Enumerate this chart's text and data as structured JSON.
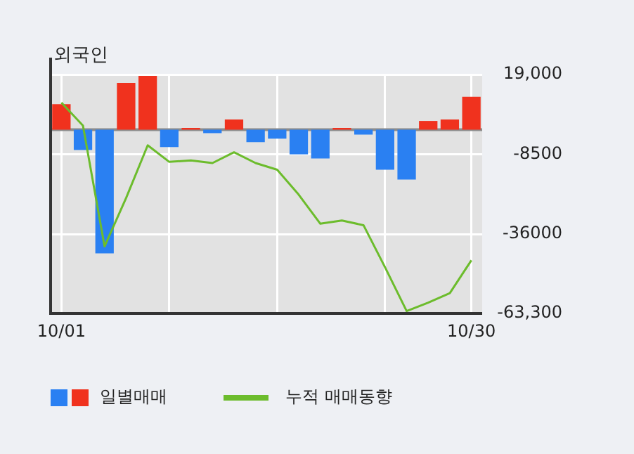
{
  "chart_data": {
    "type": "bar",
    "title": "외국인",
    "categories": [
      "10/01",
      null,
      null,
      null,
      null,
      null,
      null,
      null,
      null,
      null,
      null,
      null,
      null,
      null,
      null,
      null,
      null,
      null,
      null,
      "10/30"
    ],
    "series": [
      {
        "name": "일별매매",
        "colors": [
          "#f0321e",
          "#2a80f2",
          "#2a80f2",
          "#f0321e",
          "#f0321e",
          "#2a80f2",
          "#f0321e",
          "#2a80f2",
          "#f0321e",
          "#2a80f2",
          "#2a80f2",
          "#2a80f2",
          "#2a80f2",
          "#f0321e",
          "#2a80f2",
          "#2a80f2",
          "#2a80f2",
          "#f0321e",
          "#f0321e",
          "#f0321e"
        ],
        "values": [
          8800,
          -7000,
          -42600,
          16100,
          18500,
          -6000,
          600,
          -1200,
          3500,
          -4300,
          -3100,
          -8500,
          -9900,
          600,
          -1700,
          -13800,
          -17200,
          3000,
          3500,
          11300
        ]
      },
      {
        "name": "누적 매매동향",
        "type": "line",
        "color": "#6cbc2c",
        "values": [
          9300,
          1400,
          -40200,
          -23500,
          -5400,
          -11100,
          -10600,
          -11500,
          -7800,
          -11500,
          -13800,
          -22400,
          -32400,
          -31300,
          -32900,
          -47400,
          -62500,
          -59600,
          -56300,
          -45000
        ]
      }
    ],
    "ylim": [
      -63300,
      19000
    ],
    "yticks": [
      {
        "value": 19000,
        "label": "19,000"
      },
      -8500,
      -36000,
      {
        "value": -63300,
        "label": "-63,300"
      }
    ],
    "ref_lines": [
      {
        "axis": "y",
        "value": 0,
        "color": "#8c8c8c"
      }
    ],
    "grid": true,
    "legend": "bottom"
  }
}
